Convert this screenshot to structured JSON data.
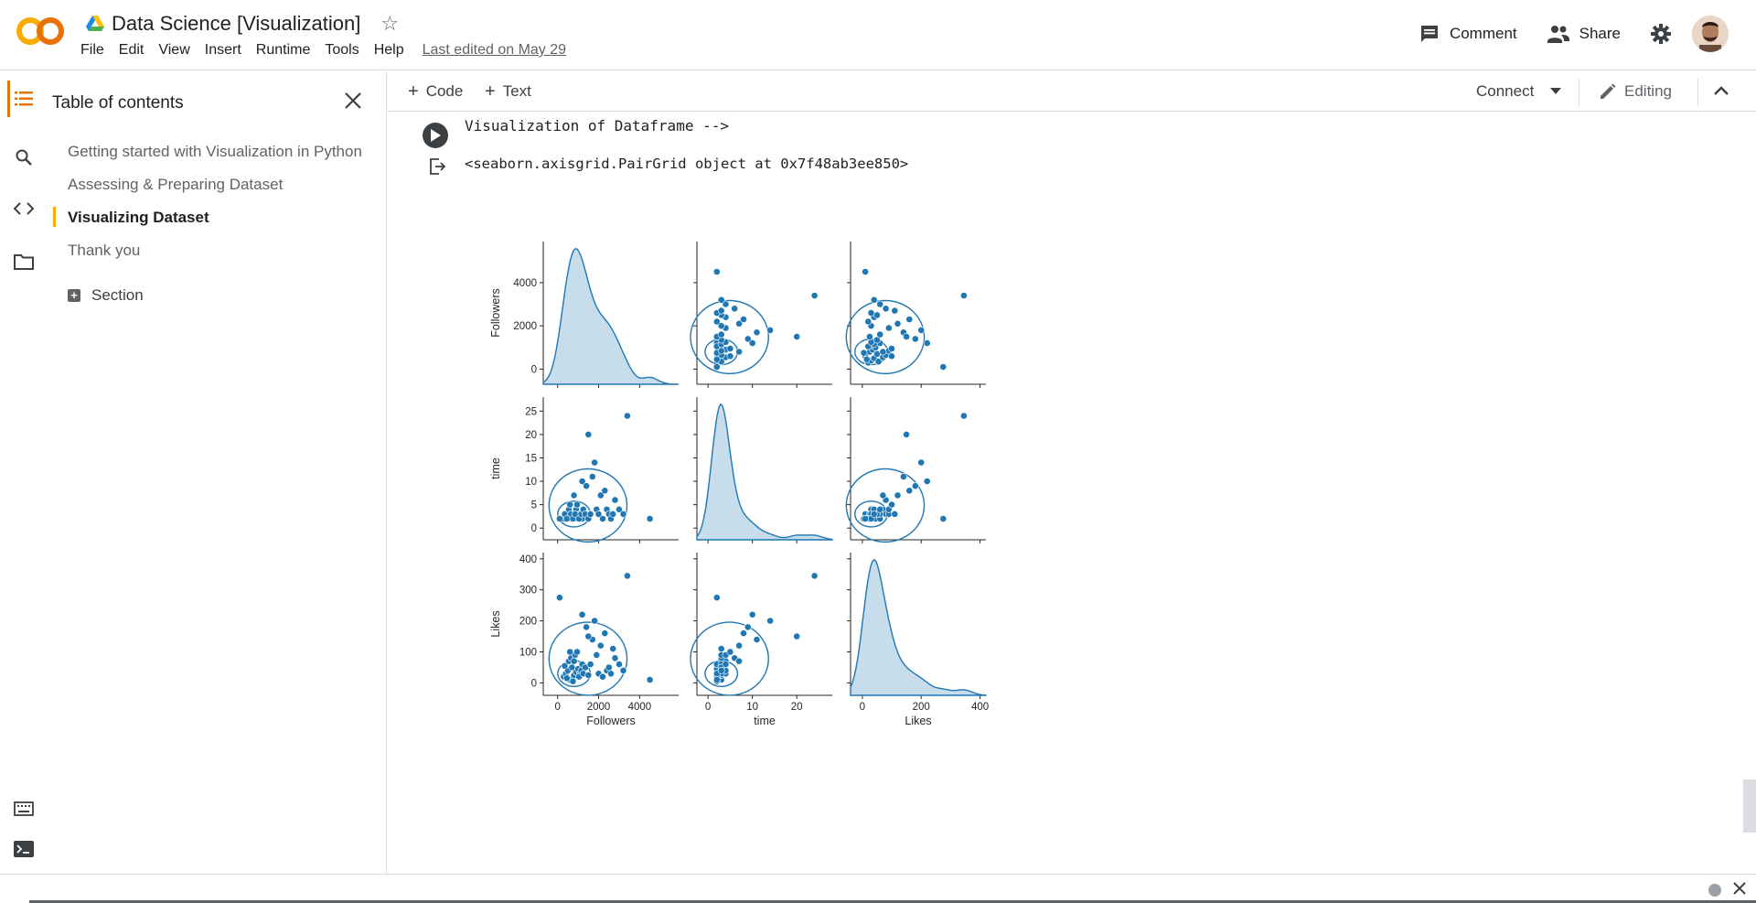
{
  "header": {
    "doc_title": "Data Science [Visualization]",
    "menu": [
      "File",
      "Edit",
      "View",
      "Insert",
      "Runtime",
      "Tools",
      "Help"
    ],
    "last_edited": "Last edited on May 29",
    "comment_label": "Comment",
    "share_label": "Share",
    "logo_text": "CO"
  },
  "toc": {
    "title": "Table of contents",
    "items": [
      "Getting started with Visualization in Python",
      "Assessing & Preparing Dataset",
      "Visualizing Dataset",
      "Thank you"
    ],
    "section_label": "Section"
  },
  "toolbar": {
    "code_label": "Code",
    "text_label": "Text",
    "connect_label": "Connect",
    "editing_label": "Editing"
  },
  "cell": {
    "code": "Visualization of Dataframe -->",
    "output": "<seaborn.axisgrid.PairGrid object at 0x7f48ab3ee850>"
  },
  "chart_data": {
    "type": "scatter",
    "variables": [
      "Followers",
      "time",
      "Likes"
    ],
    "axis_labels": {
      "x": [
        "Followers",
        "time",
        "Likes"
      ],
      "y": [
        "Followers",
        "time",
        "Likes"
      ]
    },
    "ticks": {
      "Followers": [
        0,
        2000,
        4000
      ],
      "time": [
        0,
        5,
        10,
        15,
        20,
        25
      ],
      "Likes": [
        0,
        100,
        200,
        300,
        400
      ]
    },
    "x_tick_labels": {
      "Followers": [
        "0",
        "2000",
        "4000"
      ],
      "time": [
        "0",
        "10",
        "20"
      ],
      "Likes": [
        "0",
        "200",
        "400"
      ]
    },
    "ranges": {
      "Followers": [
        -700,
        5900
      ],
      "time": [
        -2.5,
        28
      ],
      "Likes": [
        -40,
        420
      ]
    },
    "points": [
      {
        "Followers": 300,
        "time": 2,
        "Likes": 20
      },
      {
        "Followers": 400,
        "time": 3,
        "Likes": 30
      },
      {
        "Followers": 500,
        "time": 2,
        "Likes": 40
      },
      {
        "Followers": 600,
        "time": 3,
        "Likes": 10
      },
      {
        "Followers": 700,
        "time": 2,
        "Likes": 50
      },
      {
        "Followers": 800,
        "time": 3,
        "Likes": 25
      },
      {
        "Followers": 900,
        "time": 4,
        "Likes": 35
      },
      {
        "Followers": 1000,
        "time": 2,
        "Likes": 45
      },
      {
        "Followers": 1100,
        "time": 3,
        "Likes": 30
      },
      {
        "Followers": 1200,
        "time": 2,
        "Likes": 60
      },
      {
        "Followers": 350,
        "time": 3,
        "Likes": 55
      },
      {
        "Followers": 450,
        "time": 2,
        "Likes": 15
      },
      {
        "Followers": 550,
        "time": 4,
        "Likes": 70
      },
      {
        "Followers": 650,
        "time": 3,
        "Likes": 80
      },
      {
        "Followers": 750,
        "time": 2,
        "Likes": 5
      },
      {
        "Followers": 850,
        "time": 3,
        "Likes": 90
      },
      {
        "Followers": 950,
        "time": 5,
        "Likes": 100
      },
      {
        "Followers": 1050,
        "time": 2,
        "Likes": 20
      },
      {
        "Followers": 1150,
        "time": 3,
        "Likes": 40
      },
      {
        "Followers": 1250,
        "time": 4,
        "Likes": 30
      },
      {
        "Followers": 1350,
        "time": 3,
        "Likes": 50
      },
      {
        "Followers": 1500,
        "time": 2,
        "Likes": 25
      },
      {
        "Followers": 1600,
        "time": 3,
        "Likes": 60
      },
      {
        "Followers": 1700,
        "time": 11,
        "Likes": 140
      },
      {
        "Followers": 1800,
        "time": 14,
        "Likes": 200
      },
      {
        "Followers": 1900,
        "time": 4,
        "Likes": 90
      },
      {
        "Followers": 2000,
        "time": 3,
        "Likes": 30
      },
      {
        "Followers": 2100,
        "time": 7,
        "Likes": 120
      },
      {
        "Followers": 2200,
        "time": 2,
        "Likes": 20
      },
      {
        "Followers": 2300,
        "time": 8,
        "Likes": 160
      },
      {
        "Followers": 2400,
        "time": 4,
        "Likes": 40
      },
      {
        "Followers": 2500,
        "time": 3,
        "Likes": 50
      },
      {
        "Followers": 2600,
        "time": 2,
        "Likes": 30
      },
      {
        "Followers": 2800,
        "time": 6,
        "Likes": 80
      },
      {
        "Followers": 3000,
        "time": 4,
        "Likes": 60
      },
      {
        "Followers": 3200,
        "time": 3,
        "Likes": 40
      },
      {
        "Followers": 4500,
        "time": 2,
        "Likes": 10
      },
      {
        "Followers": 1500,
        "time": 20,
        "Likes": 150
      },
      {
        "Followers": 3400,
        "time": 24,
        "Likes": 345
      },
      {
        "Followers": 100,
        "time": 2,
        "Likes": 275
      },
      {
        "Followers": 1200,
        "time": 10,
        "Likes": 220
      },
      {
        "Followers": 800,
        "time": 7,
        "Likes": 70
      },
      {
        "Followers": 600,
        "time": 5,
        "Likes": 100
      },
      {
        "Followers": 1400,
        "time": 9,
        "Likes": 180
      },
      {
        "Followers": 2700,
        "time": 3,
        "Likes": 110
      }
    ]
  }
}
